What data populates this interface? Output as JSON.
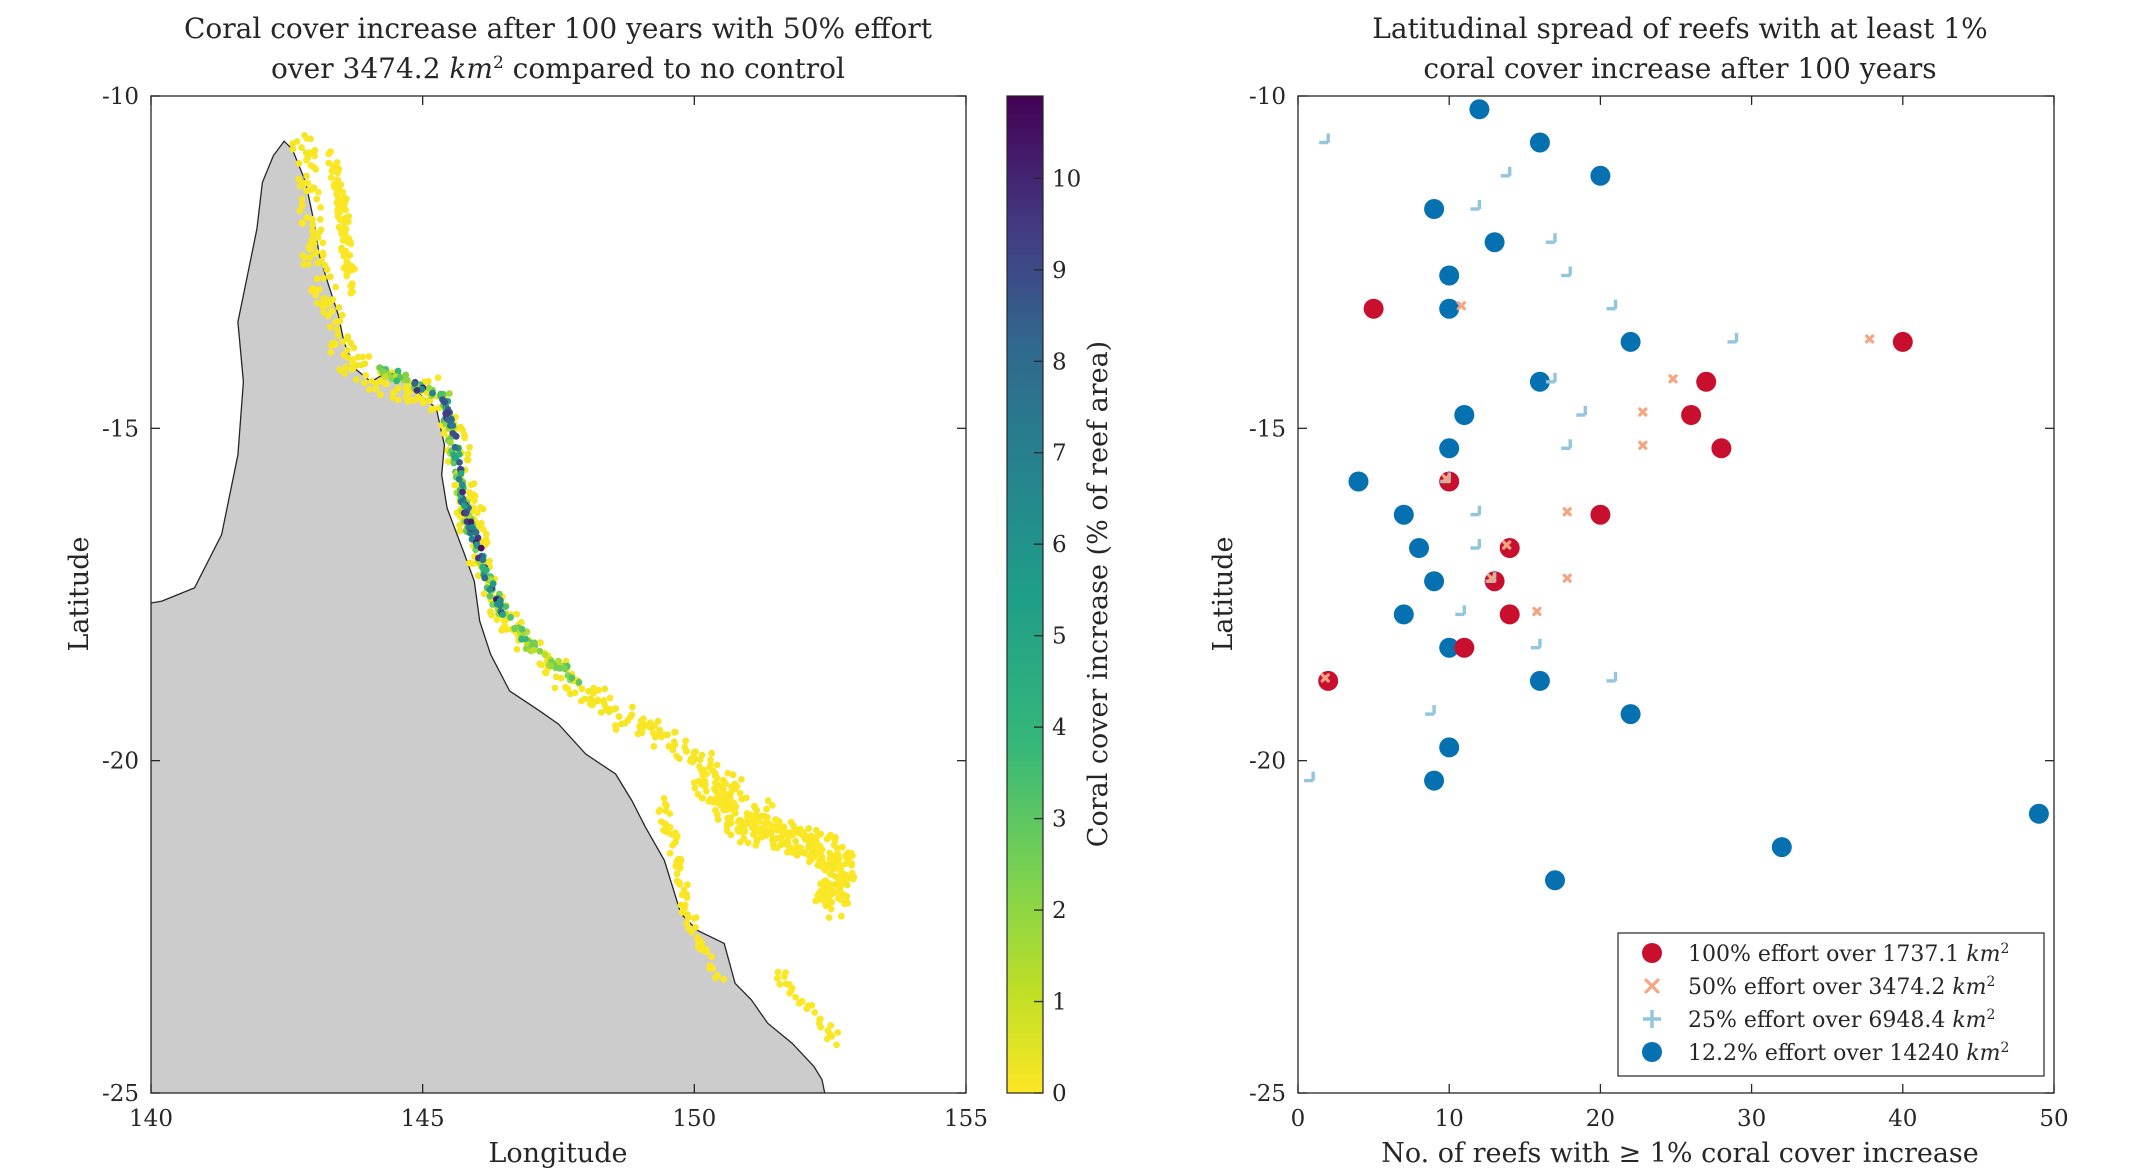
{
  "figure": {
    "left": {
      "title_line1": "Coral cover increase after 100 years with 50% effort",
      "title_line2_prefix": "over 3474.2 ",
      "title_line2_unit": "km",
      "title_line2_sup": "2",
      "title_line2_suffix": " compared to no control",
      "xlabel": "Longitude",
      "ylabel": "Latitude",
      "x_ticks": [
        "140",
        "145",
        "150",
        "155"
      ],
      "y_ticks": [
        "-10",
        "-15",
        "-20",
        "-25"
      ],
      "colorbar_label": "Coral cover increase (% of reef area)",
      "colorbar_ticks": [
        "0",
        "1",
        "2",
        "3",
        "4",
        "5",
        "6",
        "7",
        "8",
        "9",
        "10"
      ],
      "land_color": "#cccccc"
    },
    "right": {
      "title_line1": "Latitudinal spread of reefs with at least 1%",
      "title_line2": "coral cover increase after 100 years",
      "xlabel": "No. of reefs with ≥ 1% coral cover increase",
      "ylabel": "Latitude",
      "x_ticks": [
        "0",
        "10",
        "20",
        "30",
        "40",
        "50"
      ],
      "y_ticks": [
        "-10",
        "-15",
        "-20",
        "-25"
      ],
      "legend": [
        {
          "prefix": "100% effort over 1737.1 ",
          "unit": "km",
          "sup": "2"
        },
        {
          "prefix": "50% effort over 3474.2 ",
          "unit": "km",
          "sup": "2"
        },
        {
          "prefix": "25% effort over 6948.4 ",
          "unit": "km",
          "sup": "2"
        },
        {
          "prefix": "12.2% effort over 14240 ",
          "unit": "km",
          "sup": "2"
        }
      ]
    }
  },
  "chart_data": [
    {
      "type": "scatter",
      "title": "Coral cover increase after 100 years with 50% effort over 3474.2 km2 compared to no control",
      "xlabel": "Longitude",
      "ylabel": "Latitude",
      "xlim": [
        140,
        155
      ],
      "ylim": [
        -25,
        -10
      ],
      "colorbar": {
        "label": "Coral cover increase (% of reef area)",
        "range": [
          0,
          10.9
        ],
        "colormap": "viridis-reversed"
      },
      "reef_bands": [
        {
          "lon_lat_path": [
            [
              142.8,
              -10.7
            ],
            [
              142.9,
              -11.5
            ],
            [
              143.0,
              -12.4
            ],
            [
              143.3,
              -13.2
            ],
            [
              143.6,
              -14.0
            ],
            [
              144.0,
              -14.2
            ],
            [
              144.5,
              -14.4
            ],
            [
              145.1,
              -14.4
            ],
            [
              145.5,
              -14.8
            ],
            [
              145.7,
              -15.6
            ],
            [
              145.9,
              -16.4
            ],
            [
              146.1,
              -17.0
            ],
            [
              146.3,
              -17.6
            ],
            [
              146.8,
              -18.2
            ],
            [
              147.5,
              -18.7
            ],
            [
              148.3,
              -19.1
            ],
            [
              149.1,
              -19.5
            ],
            [
              150.0,
              -20.0
            ],
            [
              150.9,
              -20.5
            ],
            [
              151.6,
              -21.0
            ],
            [
              152.2,
              -21.3
            ],
            [
              152.6,
              -21.7
            ],
            [
              152.6,
              -22.2
            ]
          ],
          "spread": [
            0.45,
            0.4
          ],
          "count": 520,
          "coral_cover_increase": [
            0,
            0.2
          ]
        },
        {
          "lon_lat_path": [
            [
              143.3,
              -10.8
            ],
            [
              143.5,
              -11.5
            ],
            [
              143.6,
              -12.3
            ],
            [
              143.7,
              -13.0
            ]
          ],
          "spread": [
            0.2,
            0.2
          ],
          "count": 90,
          "coral_cover_increase": [
            0,
            0.1
          ]
        },
        {
          "lon_lat_path": [
            [
              150.2,
              -20.3
            ],
            [
              151.0,
              -21.0
            ],
            [
              152.0,
              -21.2
            ],
            [
              152.7,
              -21.5
            ],
            [
              152.5,
              -22.2
            ]
          ],
          "spread": [
            0.6,
            0.45
          ],
          "count": 260,
          "coral_cover_increase": [
            0,
            0.1
          ]
        },
        {
          "lon_lat_path": [
            [
              149.3,
              -20.4
            ],
            [
              149.6,
              -21.2
            ],
            [
              149.8,
              -22.0
            ],
            [
              150.0,
              -22.6
            ],
            [
              150.6,
              -23.4
            ]
          ],
          "spread": [
            0.2,
            0.15
          ],
          "count": 70,
          "coral_cover_increase": [
            0,
            0.1
          ]
        },
        {
          "lon_lat_path": [
            [
              151.6,
              -23.2
            ],
            [
              152.0,
              -23.6
            ],
            [
              152.3,
              -23.9
            ],
            [
              152.6,
              -24.2
            ]
          ],
          "spread": [
            0.25,
            0.2
          ],
          "count": 30,
          "coral_cover_increase": [
            0,
            0.1
          ]
        },
        {
          "lon_lat_path": [
            [
              144.1,
              -14.1
            ],
            [
              144.8,
              -14.3
            ],
            [
              145.4,
              -14.5
            ],
            [
              145.6,
              -15.4
            ],
            [
              145.8,
              -16.3
            ],
            [
              146.1,
              -17.0
            ],
            [
              146.4,
              -17.7
            ],
            [
              147.0,
              -18.3
            ],
            [
              147.9,
              -18.8
            ]
          ],
          "spread": [
            0.18,
            0.15
          ],
          "count": 150,
          "coral_cover_increase": [
            1,
            4
          ]
        },
        {
          "lon_lat_path": [
            [
              144.8,
              -14.3
            ],
            [
              145.4,
              -14.6
            ],
            [
              145.6,
              -15.2
            ],
            [
              145.7,
              -15.9
            ],
            [
              145.9,
              -16.5
            ],
            [
              146.2,
              -17.3
            ],
            [
              146.5,
              -17.8
            ]
          ],
          "spread": [
            0.12,
            0.12
          ],
          "count": 90,
          "coral_cover_increase": [
            4,
            10.5
          ]
        }
      ]
    },
    {
      "type": "scatter",
      "title": "Latitudinal spread of reefs with at least 1% coral cover increase after 100 years",
      "xlabel": "No. of reefs with ≥ 1% coral cover increase",
      "ylabel": "Latitude",
      "xlim": [
        0,
        50
      ],
      "ylim": [
        -25,
        -10
      ],
      "legend_position": "bottom-right",
      "series": [
        {
          "name": "100% effort over 1737.1 km2",
          "marker": "filled-circle",
          "color": "#c8102e",
          "points": [
            [
              5,
              -13.2
            ],
            [
              40,
              -13.7
            ],
            [
              27,
              -14.3
            ],
            [
              26,
              -14.8
            ],
            [
              28,
              -15.3
            ],
            [
              10,
              -15.8
            ],
            [
              20,
              -16.3
            ],
            [
              14,
              -16.8
            ],
            [
              13,
              -17.3
            ],
            [
              14,
              -17.8
            ],
            [
              11,
              -18.3
            ],
            [
              2,
              -18.8
            ]
          ]
        },
        {
          "name": "50% effort over 3474.2 km2",
          "marker": "x",
          "color": "#f4a582",
          "points": [
            [
              11,
              -13.2
            ],
            [
              38,
              -13.7
            ],
            [
              25,
              -14.3
            ],
            [
              23,
              -14.8
            ],
            [
              23,
              -15.3
            ],
            [
              10,
              -15.8
            ],
            [
              18,
              -16.3
            ],
            [
              14,
              -16.8
            ],
            [
              18,
              -17.3
            ],
            [
              13,
              -17.3
            ],
            [
              16,
              -17.8
            ],
            [
              2,
              -18.8
            ]
          ]
        },
        {
          "name": "25% effort over 6948.4 km2",
          "marker": "plus",
          "color": "#92c5de",
          "points": [
            [
              2,
              -10.7
            ],
            [
              14,
              -11.2
            ],
            [
              12,
              -11.7
            ],
            [
              17,
              -12.2
            ],
            [
              18,
              -12.7
            ],
            [
              21,
              -13.2
            ],
            [
              29,
              -13.7
            ],
            [
              17,
              -14.3
            ],
            [
              19,
              -14.8
            ],
            [
              18,
              -15.3
            ],
            [
              10,
              -15.8
            ],
            [
              12,
              -16.3
            ],
            [
              12,
              -16.8
            ],
            [
              13,
              -17.3
            ],
            [
              11,
              -17.8
            ],
            [
              16,
              -18.3
            ],
            [
              21,
              -18.8
            ],
            [
              9,
              -19.3
            ],
            [
              1,
              -20.3
            ]
          ]
        },
        {
          "name": "12.2% effort over 14240 km2",
          "marker": "filled-circle",
          "color": "#0571b0",
          "points": [
            [
              12,
              -10.2
            ],
            [
              16,
              -10.7
            ],
            [
              20,
              -11.2
            ],
            [
              9,
              -11.7
            ],
            [
              13,
              -12.2
            ],
            [
              10,
              -12.7
            ],
            [
              10,
              -13.2
            ],
            [
              22,
              -13.7
            ],
            [
              16,
              -14.3
            ],
            [
              11,
              -14.8
            ],
            [
              10,
              -15.3
            ],
            [
              4,
              -15.8
            ],
            [
              7,
              -16.3
            ],
            [
              8,
              -16.8
            ],
            [
              9,
              -17.3
            ],
            [
              7,
              -17.8
            ],
            [
              10,
              -18.3
            ],
            [
              16,
              -18.8
            ],
            [
              22,
              -19.3
            ],
            [
              10,
              -19.8
            ],
            [
              9,
              -20.3
            ],
            [
              49,
              -20.8
            ],
            [
              32,
              -21.3
            ],
            [
              17,
              -21.8
            ]
          ]
        }
      ]
    }
  ]
}
